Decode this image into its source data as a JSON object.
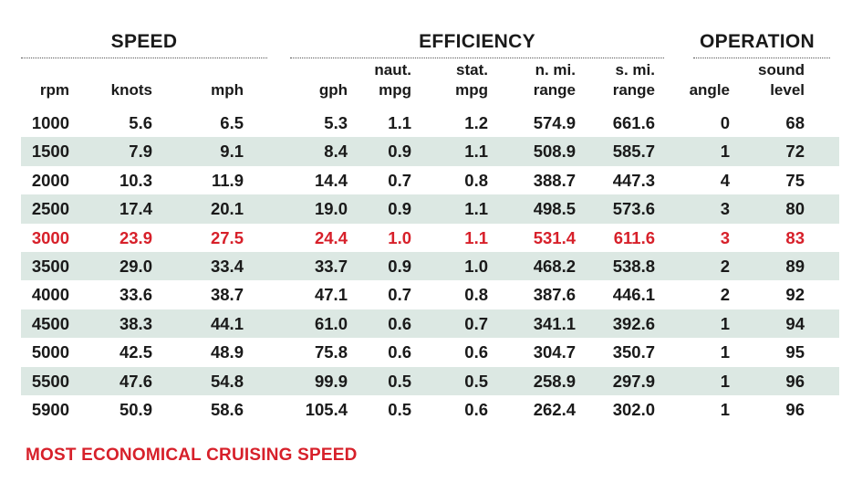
{
  "groups": {
    "speed": "SPEED",
    "efficiency": "EFFICIENCY",
    "operation": "OPERATION"
  },
  "columns": [
    "rpm",
    "knots",
    "mph",
    "gph",
    "naut.\nmpg",
    "stat.\nmpg",
    "n. mi.\nrange",
    "s. mi.\nrange",
    "angle",
    "sound\nlevel"
  ],
  "footnote": "MOST ECONOMICAL CRUISING SPEED",
  "colors": {
    "highlight": "#d7202a",
    "shade": "#dce8e3",
    "text": "#1a1a1a"
  },
  "chart_data": {
    "type": "table",
    "columns": [
      "rpm",
      "knots",
      "mph",
      "gph",
      "naut. mpg",
      "stat. mpg",
      "n. mi. range",
      "s. mi. range",
      "angle",
      "sound level"
    ],
    "highlight_row": 4,
    "rows": [
      [
        "1000",
        "5.6",
        "6.5",
        "5.3",
        "1.1",
        "1.2",
        "574.9",
        "661.6",
        "0",
        "68"
      ],
      [
        "1500",
        "7.9",
        "9.1",
        "8.4",
        "0.9",
        "1.1",
        "508.9",
        "585.7",
        "1",
        "72"
      ],
      [
        "2000",
        "10.3",
        "11.9",
        "14.4",
        "0.7",
        "0.8",
        "388.7",
        "447.3",
        "4",
        "75"
      ],
      [
        "2500",
        "17.4",
        "20.1",
        "19.0",
        "0.9",
        "1.1",
        "498.5",
        "573.6",
        "3",
        "80"
      ],
      [
        "3000",
        "23.9",
        "27.5",
        "24.4",
        "1.0",
        "1.1",
        "531.4",
        "611.6",
        "3",
        "83"
      ],
      [
        "3500",
        "29.0",
        "33.4",
        "33.7",
        "0.9",
        "1.0",
        "468.2",
        "538.8",
        "2",
        "89"
      ],
      [
        "4000",
        "33.6",
        "38.7",
        "47.1",
        "0.7",
        "0.8",
        "387.6",
        "446.1",
        "2",
        "92"
      ],
      [
        "4500",
        "38.3",
        "44.1",
        "61.0",
        "0.6",
        "0.7",
        "341.1",
        "392.6",
        "1",
        "94"
      ],
      [
        "5000",
        "42.5",
        "48.9",
        "75.8",
        "0.6",
        "0.6",
        "304.7",
        "350.7",
        "1",
        "95"
      ],
      [
        "5500",
        "47.6",
        "54.8",
        "99.9",
        "0.5",
        "0.5",
        "258.9",
        "297.9",
        "1",
        "96"
      ],
      [
        "5900",
        "50.9",
        "58.6",
        "105.4",
        "0.5",
        "0.6",
        "262.4",
        "302.0",
        "1",
        "96"
      ]
    ]
  }
}
